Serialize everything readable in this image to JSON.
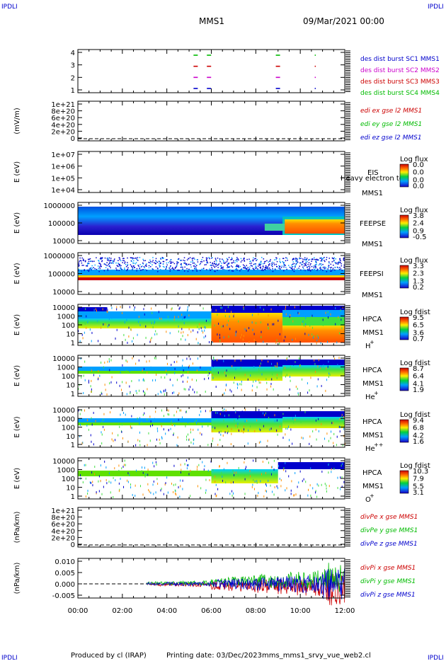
{
  "header": {
    "corner_left_top": "IPDLI",
    "corner_right_top": "IPDLI",
    "mission": "MMS1",
    "date": "09/Mar/2021 00:00"
  },
  "footer": {
    "produced_by": "Produced by cl (IRAP)",
    "printing_date": "Printing date: 03/Dec/2023",
    "script_name": "mms_mms1_srvy_vue_web2.cl",
    "corner_left_bottom": "IPDLI",
    "corner_right_bottom": "IPDLI"
  },
  "colors": {
    "blue": "#0000cc",
    "magenta": "#cc00cc",
    "red": "#cc0000",
    "green": "#00bb00"
  },
  "chart_data": [
    {
      "type": "scatter",
      "panel": "burst",
      "ylim": [
        0.5,
        4.5
      ],
      "yticks": [
        "4",
        "3",
        "2",
        "1"
      ],
      "legend": [
        "des dist burst SC1 MMS1",
        "des dist burst SC2 MMS2",
        "des dist burst SC3 MMS3",
        "des dist burst SC4 MMS4"
      ],
      "legend_colors": [
        "#0000cc",
        "#cc00cc",
        "#cc0000",
        "#00bb00"
      ],
      "series": [
        {
          "values": [
            [
              5.2,
              1
            ],
            [
              5.8,
              1
            ],
            [
              8.9,
              1
            ],
            [
              10.65,
              1
            ]
          ]
        },
        {
          "values": [
            [
              5.2,
              2
            ],
            [
              5.8,
              2
            ],
            [
              8.9,
              2
            ],
            [
              10.65,
              2
            ]
          ]
        },
        {
          "values": [
            [
              5.2,
              3
            ],
            [
              5.8,
              3
            ],
            [
              8.9,
              3
            ],
            [
              10.65,
              3
            ]
          ]
        },
        {
          "values": [
            [
              5.2,
              4
            ],
            [
              5.8,
              4
            ],
            [
              8.9,
              4
            ],
            [
              10.65,
              4
            ]
          ]
        }
      ]
    },
    {
      "type": "line",
      "panel": "edi",
      "ylabel": "(mV/m)",
      "yticks": [
        "1e+21",
        "8e+20",
        "6e+20",
        "4e+20",
        "2e+20",
        "0"
      ],
      "legend": [
        "edi ex gse l2 MMS1",
        "edi ey gse l2 MMS1",
        "edi ez gse l2 MMS1"
      ],
      "legend_colors": [
        "#cc0000",
        "#00bb00",
        "#0000cc"
      ]
    },
    {
      "type": "heatmap",
      "panel": "eis",
      "ylabel": "E (eV)",
      "yticks": [
        "1e+07",
        "1e+06",
        "1e+05",
        "1e+04"
      ],
      "labels": [
        "EIS",
        "MMS1"
      ],
      "overlay": "Heavy electron to",
      "cbar_title": "Log flux",
      "cbar_ticks": [
        "0.0",
        "0.0",
        "0.0",
        "0.0"
      ]
    },
    {
      "type": "heatmap",
      "panel": "feeps_e",
      "ylabel": "E (eV)",
      "yticks": [
        "1000000",
        "100000",
        "10000"
      ],
      "labels": [
        "FEEPSE",
        "MMS1"
      ],
      "cbar_title": "Log flux",
      "cbar_ticks": [
        "3.8",
        "2.4",
        "0.9",
        "-0.5"
      ]
    },
    {
      "type": "heatmap",
      "panel": "feeps_i",
      "ylabel": "E (eV)",
      "yticks": [
        "1000000",
        "100000",
        "10000"
      ],
      "labels": [
        "FEEPSI",
        "MMS1"
      ],
      "cbar_title": "Log flux",
      "cbar_ticks": [
        "3.3",
        "2.3",
        "1.3",
        "0.2"
      ]
    },
    {
      "type": "heatmap",
      "panel": "hpca_h",
      "ylabel": "E (eV)",
      "yticks": [
        "10000",
        "1000",
        "100",
        "10",
        "1"
      ],
      "labels": [
        "HPCA",
        "MMS1",
        "H",
        "+"
      ],
      "cbar_title": "Log fdist",
      "cbar_ticks": [
        "9.5",
        "6.5",
        "3.6",
        "0.7"
      ]
    },
    {
      "type": "heatmap",
      "panel": "hpca_he",
      "ylabel": "E (eV)",
      "yticks": [
        "10000",
        "1000",
        "100",
        "10",
        "1"
      ],
      "labels": [
        "HPCA",
        "MMS1",
        "He",
        "+"
      ],
      "cbar_title": "Log fdist",
      "cbar_ticks": [
        "8.7",
        "6.4",
        "4.1",
        "1.9"
      ]
    },
    {
      "type": "heatmap",
      "panel": "hpca_hepp",
      "ylabel": "E (eV)",
      "yticks": [
        "10000",
        "1000",
        "100",
        "10",
        "1"
      ],
      "labels": [
        "HPCA",
        "MMS1",
        "He",
        "++"
      ],
      "cbar_title": "Log fdist",
      "cbar_ticks": [
        "9.4",
        "6.8",
        "4.2",
        "1.6"
      ]
    },
    {
      "type": "heatmap",
      "panel": "hpca_o",
      "ylabel": "E (eV)",
      "yticks": [
        "10000",
        "1000",
        "100",
        "10",
        "1"
      ],
      "labels": [
        "HPCA",
        "MMS1",
        "O",
        "+"
      ],
      "cbar_title": "Log fdist",
      "cbar_ticks": [
        "10.3",
        "7.9",
        "5.5",
        "3.1"
      ]
    },
    {
      "type": "line",
      "panel": "divpe",
      "ylabel": "(nPa/km)",
      "yticks": [
        "1e+21",
        "8e+20",
        "6e+20",
        "4e+20",
        "2e+20",
        "0"
      ],
      "legend": [
        "divPe x gse MMS1",
        "divPe y gse MMS1",
        "divPe z gse MMS1"
      ],
      "legend_colors": [
        "#cc0000",
        "#00bb00",
        "#0000cc"
      ]
    },
    {
      "type": "line",
      "panel": "divpi",
      "ylabel": "(nPa/km)",
      "yticks": [
        "0.010",
        "0.005",
        "0.000",
        "-0.005"
      ],
      "ylim": [
        -0.0075,
        0.0125
      ],
      "legend": [
        "divPi x gse MMS1",
        "divPi y gse MMS1",
        "divPi z gse MMS1"
      ],
      "legend_colors": [
        "#cc0000",
        "#00bb00",
        "#0000cc"
      ]
    }
  ],
  "xaxis": {
    "ticks": [
      "00:00",
      "02:00",
      "04:00",
      "06:00",
      "08:00",
      "10:00",
      "12:00"
    ],
    "xlim": [
      0,
      12
    ]
  }
}
